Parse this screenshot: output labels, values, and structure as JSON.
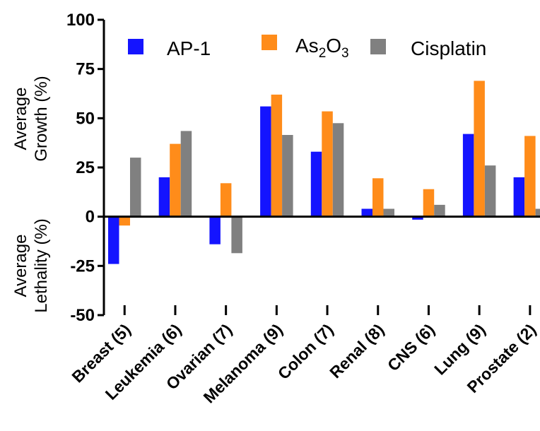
{
  "chart_data": {
    "type": "bar",
    "title": "",
    "xlabel": "",
    "ylabel_upper": [
      "Average",
      "Growth (%)"
    ],
    "ylabel_lower": [
      "Average",
      "Lethality (%)"
    ],
    "ylim": [
      -50,
      100
    ],
    "yticks": [
      -50,
      -25,
      0,
      25,
      50,
      75,
      100
    ],
    "ytick_labels": [
      "-50",
      "-25",
      "0",
      "25",
      "50",
      "75",
      "100"
    ],
    "grid": false,
    "legend_position": "top",
    "categories": [
      "Breast (5)",
      "Leukemia (6)",
      "Ovarian (7)",
      "Melanoma (9)",
      "Colon (7)",
      "Renal (8)",
      "CNS (6)",
      "Lung (9)",
      "Prostate (2)"
    ],
    "series": [
      {
        "name": "AP-1",
        "color": "#1414ff",
        "values": [
          -24,
          20,
          -14,
          56,
          33,
          4,
          -1.5,
          42,
          20
        ]
      },
      {
        "name": "As2O3",
        "label_main": "As",
        "label_sub1": "2",
        "label_mid": "O",
        "label_sub2": "3",
        "color": "#ff8c1a",
        "values": [
          -4.5,
          37,
          17,
          62,
          53.5,
          19.5,
          14,
          69,
          41
        ]
      },
      {
        "name": "Cisplatin",
        "color": "#808080",
        "values": [
          30,
          43.5,
          -18.5,
          41.5,
          47.5,
          4,
          6,
          26,
          4
        ]
      }
    ]
  }
}
